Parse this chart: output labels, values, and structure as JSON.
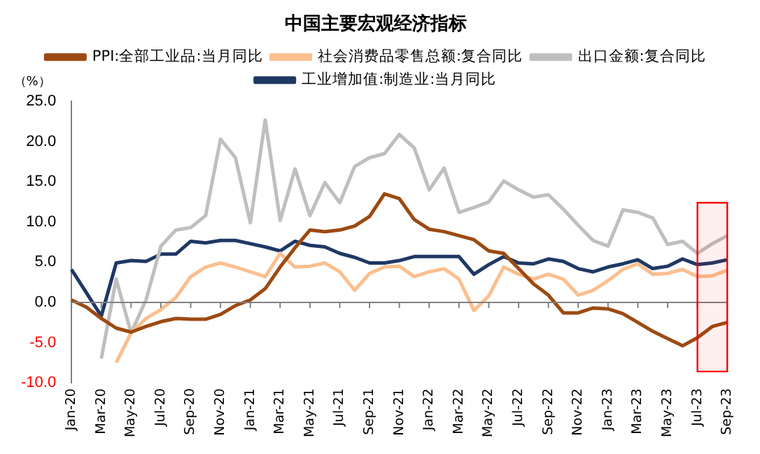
{
  "chart_data": {
    "type": "line",
    "title": "中国主要宏观经济指标",
    "ylabel": "（%）",
    "categories": [
      "Jan-20",
      null,
      "Mar-20",
      null,
      "May-20",
      null,
      "Jul-20",
      null,
      "Sep-20",
      null,
      "Nov-20",
      null,
      "Jan-21",
      null,
      "Mar-21",
      null,
      "May-21",
      null,
      "Jul-21",
      null,
      "Sep-21",
      null,
      "Nov-21",
      null,
      "Jan-22",
      null,
      "Mar-22",
      null,
      "May-22",
      null,
      "Jul-22",
      null,
      "Sep-22",
      null,
      "Nov-22",
      null,
      "Jan-23",
      null,
      "Mar-23",
      null,
      "May-23",
      null,
      "Jul-23",
      null,
      "Sep-23"
    ],
    "series": [
      {
        "name": "PPI:全部工业品:当月同比",
        "color": "#9c4a12",
        "values": [
          0.3,
          -0.6,
          -2.0,
          -3.2,
          -3.7,
          -3.0,
          -2.4,
          -2.0,
          -2.1,
          -2.1,
          -1.5,
          -0.4,
          0.3,
          1.7,
          4.4,
          6.8,
          9.0,
          8.8,
          9.0,
          9.5,
          10.7,
          13.5,
          12.9,
          10.3,
          9.1,
          8.8,
          8.3,
          7.8,
          6.4,
          6.1,
          4.2,
          2.3,
          0.9,
          -1.3,
          -1.3,
          -0.7,
          -0.8,
          -1.4,
          -2.5,
          -3.6,
          -4.5,
          -5.4,
          -4.4,
          -3.0,
          -2.5
        ]
      },
      {
        "name": "社会消费品零售总额:复合同比",
        "color": "#fbbf8f",
        "values": [
          null,
          null,
          null,
          -7.5,
          -3.8,
          -2.0,
          -0.9,
          0.6,
          3.2,
          4.4,
          4.9,
          4.4,
          3.8,
          3.2,
          6.1,
          4.4,
          4.5,
          4.9,
          3.8,
          1.5,
          3.6,
          4.4,
          4.5,
          3.2,
          3.8,
          4.2,
          2.9,
          -1.0,
          0.8,
          4.4,
          3.5,
          2.9,
          3.5,
          2.9,
          0.9,
          1.5,
          2.7,
          4.1,
          4.8,
          3.5,
          3.6,
          4.1,
          3.2,
          3.3,
          4.0
        ]
      },
      {
        "name": "出口金额:复合同比",
        "color": "#bfbfbf",
        "values": [
          null,
          null,
          -7.0,
          2.9,
          -3.8,
          0.3,
          7.0,
          9.0,
          9.3,
          10.8,
          20.3,
          18.0,
          9.9,
          22.7,
          10.2,
          16.6,
          10.8,
          14.9,
          12.4,
          16.9,
          18.0,
          18.5,
          20.9,
          19.2,
          14.0,
          16.7,
          11.2,
          11.8,
          12.5,
          15.1,
          14.0,
          13.1,
          13.4,
          11.6,
          9.6,
          7.7,
          7.0,
          11.5,
          11.2,
          10.5,
          7.2,
          7.6,
          6.1,
          7.3,
          8.3
        ]
      },
      {
        "name": "工业增加值:制造业:当月同比",
        "color": "#1f3864",
        "values": [
          4.1,
          1.2,
          -1.7,
          4.9,
          5.2,
          5.1,
          6.0,
          6.0,
          7.6,
          7.4,
          7.7,
          7.7,
          7.3,
          6.9,
          6.4,
          7.6,
          7.1,
          6.9,
          6.1,
          5.6,
          4.9,
          4.9,
          5.2,
          5.7,
          5.7,
          5.7,
          5.7,
          3.5,
          4.7,
          5.7,
          4.9,
          4.8,
          5.4,
          5.1,
          4.2,
          3.8,
          4.4,
          4.8,
          5.3,
          4.2,
          4.5,
          5.4,
          4.7,
          4.9,
          5.3
        ]
      }
    ],
    "ylim": [
      -10,
      25
    ],
    "yticks": [
      {
        "value": -10,
        "label": "-10.0"
      },
      {
        "value": -5,
        "label": "-5.0"
      },
      {
        "value": 0,
        "label": "0.0"
      },
      {
        "value": 5,
        "label": "5.0"
      },
      {
        "value": 10,
        "label": "10.0"
      },
      {
        "value": 15,
        "label": "15.0"
      },
      {
        "value": 20,
        "label": "20.0"
      },
      {
        "value": 25,
        "label": "25.0"
      }
    ],
    "bands": [
      {
        "axis": "x",
        "from": "Jul-23",
        "to": "Sep-23",
        "color": "#ff0000"
      }
    ],
    "ref_lines": [
      {
        "axis": "y",
        "value": 0,
        "color": "#808080"
      }
    ],
    "grid": false,
    "legend": "top",
    "marker": "none",
    "line_style": "solid"
  }
}
